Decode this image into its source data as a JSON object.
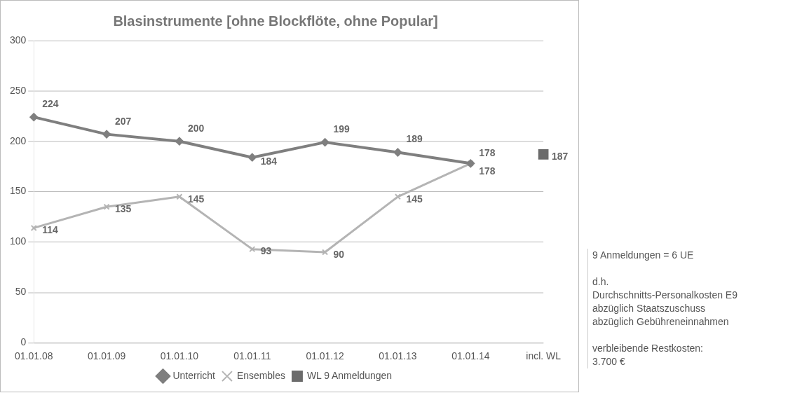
{
  "chart_data": {
    "type": "line",
    "title": "Blasinstrumente [ohne Blockflöte, ohne Popular]",
    "categories": [
      "01.01.08",
      "01.01.09",
      "01.01.10",
      "01.01.11",
      "01.01.12",
      "01.01.13",
      "01.01.14",
      "incl. WL"
    ],
    "series": [
      {
        "name": "Unterricht",
        "color": "#7f7f7f",
        "marker": "diamond",
        "values": [
          224,
          207,
          200,
          184,
          199,
          189,
          178,
          null
        ]
      },
      {
        "name": "Ensembles",
        "color": "#b4b4b4",
        "marker": "cross",
        "values": [
          114,
          135,
          145,
          93,
          90,
          145,
          178,
          null
        ]
      },
      {
        "name": "WL 9 Anmeldungen",
        "color": "#6b6b6b",
        "marker": "square",
        "values": [
          null,
          null,
          null,
          null,
          null,
          null,
          null,
          187
        ]
      }
    ],
    "ylim": [
      0,
      300
    ],
    "yticks": [
      0,
      50,
      100,
      150,
      200,
      250,
      300
    ],
    "grid": "y",
    "legend": "bottom",
    "data_labels": true,
    "annotations": [
      "9 Anmeldungen =  6 UE",
      "d.h.",
      "Durchschnitts-Personalkosten  E9",
      "abzüglich Staatszuschuss",
      "abzüglich Gebühreneinnahmen",
      "verbleibende Restkosten:",
      "3.700 €"
    ]
  }
}
